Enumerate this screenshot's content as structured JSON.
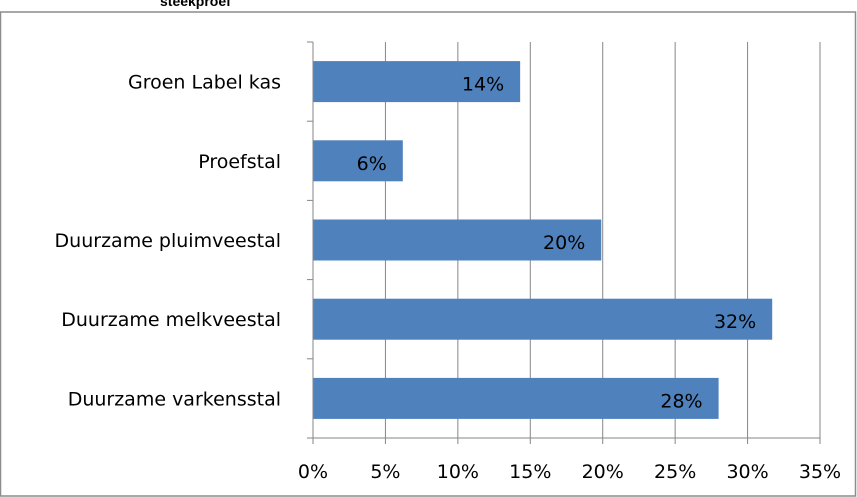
{
  "chart_data": {
    "type": "bar",
    "orientation": "horizontal",
    "title": "steekproef",
    "categories": [
      "Groen Label kas",
      "Proefstal",
      "Duurzame pluimveestal",
      "Duurzame melkveestal",
      "Duurzame varkensstal"
    ],
    "values": [
      14.3,
      6.2,
      19.9,
      31.7,
      28.0
    ],
    "data_labels": [
      "14%",
      "6%",
      "20%",
      "32%",
      "28%"
    ],
    "x_ticks": [
      "0%",
      "5%",
      "10%",
      "15%",
      "20%",
      "25%",
      "30%",
      "35%"
    ],
    "xlim": [
      0,
      35
    ],
    "grid": true,
    "bar_color": "#4f81bd",
    "xlabel": "",
    "ylabel": ""
  }
}
